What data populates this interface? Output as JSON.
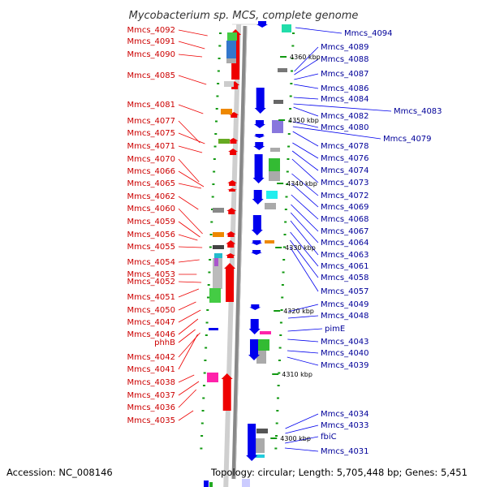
{
  "title": "Mycobacterium sp. MCS, complete genome",
  "footer": {
    "accession": "Accession: NC_008146",
    "topology": "Topology: circular; Length: 5,705,448 bp; Genes: 5,451"
  },
  "ticks": [
    "4360 kbp",
    "4350 kbp",
    "4340 kbp",
    "4330 kbp",
    "4320 kbp",
    "4310 kbp",
    "4300 kbp"
  ],
  "left_labels": [
    "Mmcs_4092",
    "Mmcs_4091",
    "Mmcs_4090",
    "Mmcs_4085",
    "Mmcs_4081",
    "Mmcs_4077",
    "Mmcs_4075",
    "Mmcs_4071",
    "Mmcs_4070",
    "Mmcs_4066",
    "Mmcs_4065",
    "Mmcs_4062",
    "Mmcs_4060",
    "Mmcs_4059",
    "Mmcs_4056",
    "Mmcs_4055",
    "Mmcs_4054",
    "Mmcs_4053",
    "Mmcs_4052",
    "Mmcs_4051",
    "Mmcs_4050",
    "Mmcs_4047",
    "Mmcs_4046",
    "phhB",
    "Mmcs_4042",
    "Mmcs_4041",
    "Mmcs_4038",
    "Mmcs_4037",
    "Mmcs_4036",
    "Mmcs_4035"
  ],
  "right_labels": [
    "Mmcs_4094",
    "Mmcs_4089",
    "Mmcs_4088",
    "Mmcs_4087",
    "Mmcs_4086",
    "Mmcs_4084",
    "Mmcs_4083",
    "Mmcs_4082",
    "Mmcs_4080",
    "Mmcs_4079",
    "Mmcs_4078",
    "Mmcs_4076",
    "Mmcs_4074",
    "Mmcs_4073",
    "Mmcs_4072",
    "Mmcs_4069",
    "Mmcs_4068",
    "Mmcs_4067",
    "Mmcs_4064",
    "Mmcs_4063",
    "Mmcs_4061",
    "Mmcs_4058",
    "Mmcs_4057",
    "Mmcs_4049",
    "Mmcs_4048",
    "pimE",
    "Mmcs_4043",
    "Mmcs_4040",
    "Mmcs_4039",
    "Mmcs_4034",
    "Mmcs_4033",
    "fbiC",
    "Mmcs_4031"
  ],
  "colors": {
    "left_strand": "#ee0000",
    "right_strand": "#0000ee",
    "backbone": "#888888",
    "left_label": "#cc0000",
    "right_label": "#000099"
  }
}
